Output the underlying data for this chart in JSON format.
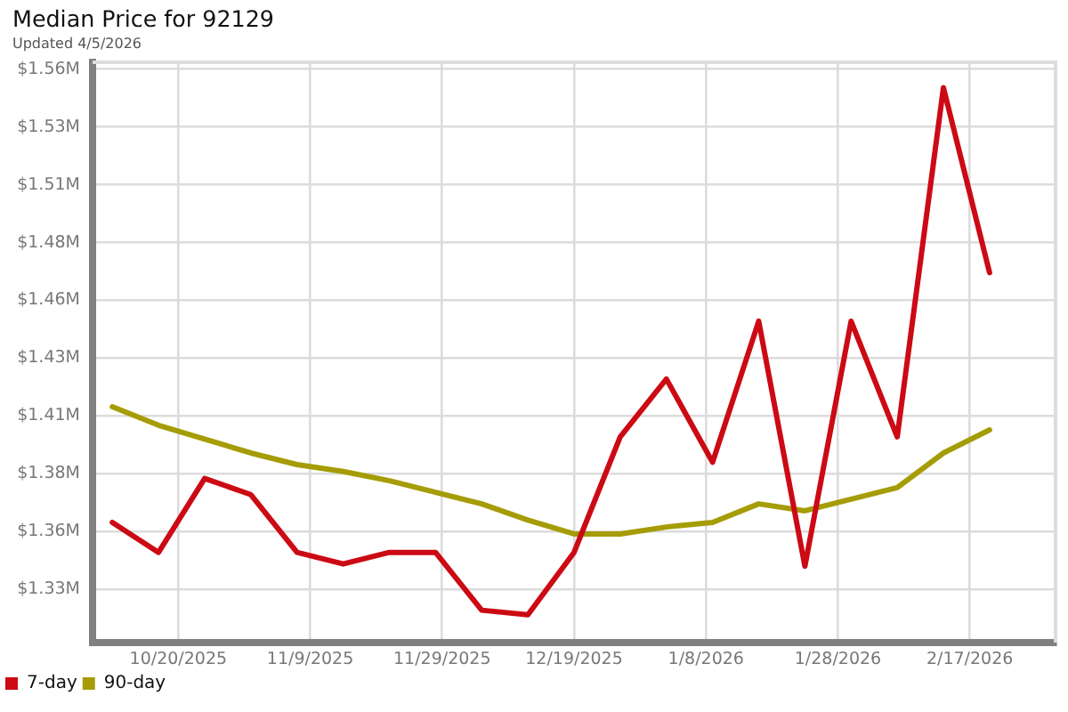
{
  "chart_data": {
    "type": "line",
    "title": "Median Price for 92129",
    "subtitle": "Updated 4/5/2026",
    "x": [
      "2025-10-10",
      "2025-10-17",
      "2025-10-24",
      "2025-10-31",
      "2025-11-07",
      "2025-11-14",
      "2025-11-21",
      "2025-11-28",
      "2025-12-05",
      "2025-12-12",
      "2025-12-19",
      "2025-12-26",
      "2026-01-02",
      "2026-01-09",
      "2026-01-16",
      "2026-01-23",
      "2026-01-30",
      "2026-02-06",
      "2026-02-13",
      "2026-02-20"
    ],
    "series": [
      {
        "name": "7-day",
        "color": "#cc0a14",
        "values": [
          1.359,
          1.346,
          1.378,
          1.371,
          1.346,
          1.341,
          1.346,
          1.346,
          1.321,
          1.319,
          1.346,
          1.396,
          1.421,
          1.385,
          1.446,
          1.34,
          1.446,
          1.396,
          1.547,
          1.467
        ]
      },
      {
        "name": "90-day",
        "color": "#a59c06",
        "values": [
          1.409,
          1.401,
          1.395,
          1.389,
          1.384,
          1.381,
          1.377,
          1.372,
          1.367,
          1.36,
          1.354,
          1.354,
          1.357,
          1.359,
          1.367,
          1.364,
          1.369,
          1.374,
          1.389,
          1.399
        ]
      }
    ],
    "xlim": [
      "2025-10-07",
      "2026-03-02"
    ],
    "xticks": [
      {
        "value": "2025-10-20",
        "label": "10/20/2025"
      },
      {
        "value": "2025-11-09",
        "label": "11/9/2025"
      },
      {
        "value": "2025-11-29",
        "label": "11/29/2025"
      },
      {
        "value": "2025-12-19",
        "label": "12/19/2025"
      },
      {
        "value": "2026-01-08",
        "label": "1/8/2026"
      },
      {
        "value": "2026-01-28",
        "label": "1/28/2026"
      },
      {
        "value": "2026-02-17",
        "label": "2/17/2026"
      }
    ],
    "ylim": [
      1.307,
      1.558
    ],
    "yticks": [
      {
        "value": 1.33,
        "label": "$1.33M"
      },
      {
        "value": 1.355,
        "label": "$1.36M"
      },
      {
        "value": 1.38,
        "label": "$1.38M"
      },
      {
        "value": 1.405,
        "label": "$1.41M"
      },
      {
        "value": 1.43,
        "label": "$1.43M"
      },
      {
        "value": 1.455,
        "label": "$1.46M"
      },
      {
        "value": 1.48,
        "label": "$1.48M"
      },
      {
        "value": 1.505,
        "label": "$1.51M"
      },
      {
        "value": 1.53,
        "label": "$1.53M"
      },
      {
        "value": 1.555,
        "label": "$1.56M"
      }
    ],
    "grid": true,
    "legend": "bottom left",
    "marker": "none",
    "line_style": "solid"
  }
}
